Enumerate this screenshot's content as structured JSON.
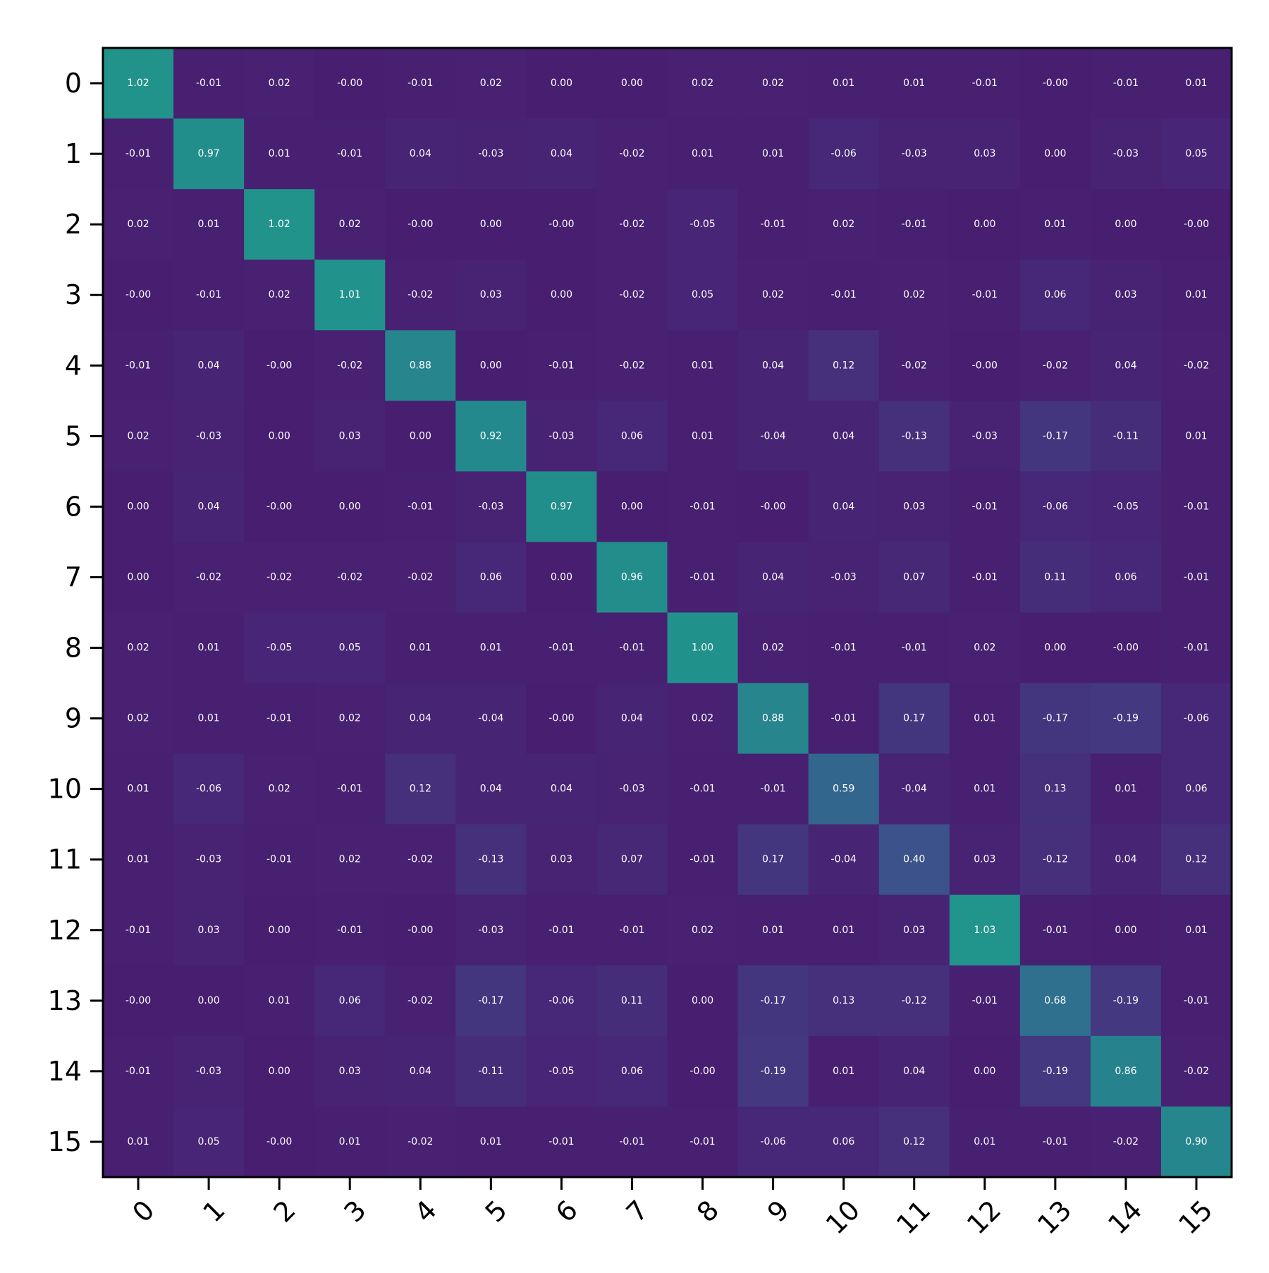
{
  "chart_data": {
    "type": "heatmap",
    "title": "",
    "xlabel": "",
    "ylabel": "",
    "x_ticks": [
      "0",
      "1",
      "2",
      "3",
      "4",
      "5",
      "6",
      "7",
      "8",
      "9",
      "10",
      "11",
      "12",
      "13",
      "14",
      "15"
    ],
    "y_ticks": [
      "0",
      "1",
      "2",
      "3",
      "4",
      "5",
      "6",
      "7",
      "8",
      "9",
      "10",
      "11",
      "12",
      "13",
      "14",
      "15"
    ],
    "colormap": "viridis",
    "color_range": [
      -0.2,
      2.2
    ],
    "x_tick_rotation": "45 degrees",
    "grid": false,
    "values": [
      [
        "1.02",
        "-0.01",
        "0.02",
        "-0.00",
        "-0.01",
        "0.02",
        "0.00",
        "0.00",
        "0.02",
        "0.02",
        "0.01",
        "0.01",
        "-0.01",
        "-0.00",
        "-0.01",
        "0.01"
      ],
      [
        "-0.01",
        "0.97",
        "0.01",
        "-0.01",
        "0.04",
        "-0.03",
        "0.04",
        "-0.02",
        "0.01",
        "0.01",
        "-0.06",
        "-0.03",
        "0.03",
        "0.00",
        "-0.03",
        "0.05"
      ],
      [
        "0.02",
        "0.01",
        "1.02",
        "0.02",
        "-0.00",
        "0.00",
        "-0.00",
        "-0.02",
        "-0.05",
        "-0.01",
        "0.02",
        "-0.01",
        "0.00",
        "0.01",
        "0.00",
        "-0.00"
      ],
      [
        "-0.00",
        "-0.01",
        "0.02",
        "1.01",
        "-0.02",
        "0.03",
        "0.00",
        "-0.02",
        "0.05",
        "0.02",
        "-0.01",
        "0.02",
        "-0.01",
        "0.06",
        "0.03",
        "0.01"
      ],
      [
        "-0.01",
        "0.04",
        "-0.00",
        "-0.02",
        "0.88",
        "0.00",
        "-0.01",
        "-0.02",
        "0.01",
        "0.04",
        "0.12",
        "-0.02",
        "-0.00",
        "-0.02",
        "0.04",
        "-0.02"
      ],
      [
        "0.02",
        "-0.03",
        "0.00",
        "0.03",
        "0.00",
        "0.92",
        "-0.03",
        "0.06",
        "0.01",
        "-0.04",
        "0.04",
        "-0.13",
        "-0.03",
        "-0.17",
        "-0.11",
        "0.01"
      ],
      [
        "0.00",
        "0.04",
        "-0.00",
        "0.00",
        "-0.01",
        "-0.03",
        "0.97",
        "0.00",
        "-0.01",
        "-0.00",
        "0.04",
        "0.03",
        "-0.01",
        "-0.06",
        "-0.05",
        "-0.01"
      ],
      [
        "0.00",
        "-0.02",
        "-0.02",
        "-0.02",
        "-0.02",
        "0.06",
        "0.00",
        "0.96",
        "-0.01",
        "0.04",
        "-0.03",
        "0.07",
        "-0.01",
        "0.11",
        "0.06",
        "-0.01"
      ],
      [
        "0.02",
        "0.01",
        "-0.05",
        "0.05",
        "0.01",
        "0.01",
        "-0.01",
        "-0.01",
        "1.00",
        "0.02",
        "-0.01",
        "-0.01",
        "0.02",
        "0.00",
        "-0.00",
        "-0.01"
      ],
      [
        "0.02",
        "0.01",
        "-0.01",
        "0.02",
        "0.04",
        "-0.04",
        "-0.00",
        "0.04",
        "0.02",
        "0.88",
        "-0.01",
        "0.17",
        "0.01",
        "-0.17",
        "-0.19",
        "-0.06"
      ],
      [
        "0.01",
        "-0.06",
        "0.02",
        "-0.01",
        "0.12",
        "0.04",
        "0.04",
        "-0.03",
        "-0.01",
        "-0.01",
        "0.59",
        "-0.04",
        "0.01",
        "0.13",
        "0.01",
        "0.06"
      ],
      [
        "0.01",
        "-0.03",
        "-0.01",
        "0.02",
        "-0.02",
        "-0.13",
        "0.03",
        "0.07",
        "-0.01",
        "0.17",
        "-0.04",
        "0.40",
        "0.03",
        "-0.12",
        "0.04",
        "0.12"
      ],
      [
        "-0.01",
        "0.03",
        "0.00",
        "-0.01",
        "-0.00",
        "-0.03",
        "-0.01",
        "-0.01",
        "0.02",
        "0.01",
        "0.01",
        "0.03",
        "1.03",
        "-0.01",
        "0.00",
        "0.01"
      ],
      [
        "-0.00",
        "0.00",
        "0.01",
        "0.06",
        "-0.02",
        "-0.17",
        "-0.06",
        "0.11",
        "0.00",
        "-0.17",
        "0.13",
        "-0.12",
        "-0.01",
        "0.68",
        "-0.19",
        "-0.01"
      ],
      [
        "-0.01",
        "-0.03",
        "0.00",
        "0.03",
        "0.04",
        "-0.11",
        "-0.05",
        "0.06",
        "-0.00",
        "-0.19",
        "0.01",
        "0.04",
        "0.00",
        "-0.19",
        "0.86",
        "-0.02"
      ],
      [
        "0.01",
        "0.05",
        "-0.00",
        "0.01",
        "-0.02",
        "0.01",
        "-0.01",
        "-0.01",
        "-0.01",
        "-0.06",
        "0.06",
        "0.12",
        "0.01",
        "-0.01",
        "-0.02",
        "0.90"
      ]
    ]
  }
}
